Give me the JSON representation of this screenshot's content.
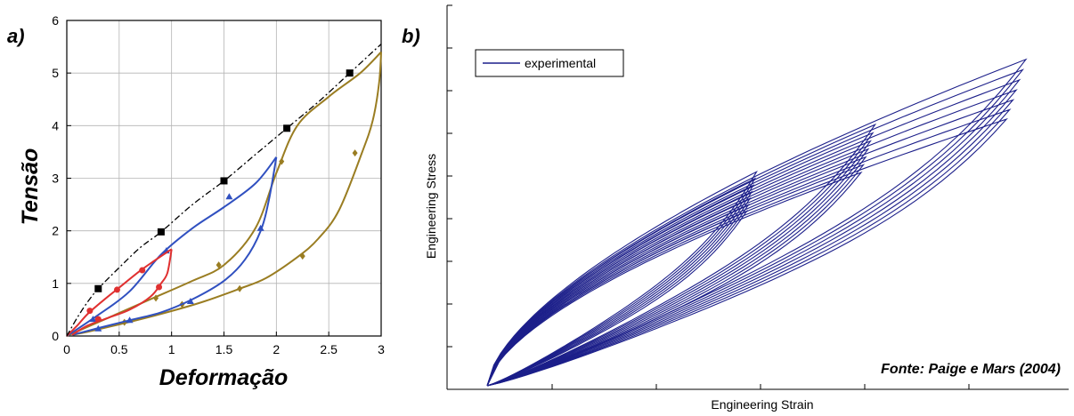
{
  "chart_data": [
    {
      "panel_label": "a)",
      "type": "line",
      "xlabel": "Deformação",
      "ylabel": "Tensão",
      "xlim": [
        0,
        3
      ],
      "ylim": [
        0,
        6
      ],
      "x_ticks": [
        "0",
        "0.5",
        "1",
        "1.5",
        "2",
        "2.5",
        "3"
      ],
      "y_ticks": [
        "0",
        "1",
        "2",
        "3",
        "4",
        "5",
        "6"
      ],
      "grid": true,
      "colors": {
        "envelope": "#000000",
        "cycle_1": "#e03030",
        "cycle_2": "#3050c0",
        "cycle_3": "#9a7d22"
      },
      "series": [
        {
          "key": "envelope",
          "style": "dash-dot",
          "marker": "square",
          "points": [
            [
              0,
              0
            ],
            [
              0.1,
              0.35
            ],
            [
              0.2,
              0.65
            ],
            [
              0.3,
              0.9
            ],
            [
              0.5,
              1.3
            ],
            [
              0.7,
              1.68
            ],
            [
              0.9,
              1.98
            ],
            [
              1.2,
              2.5
            ],
            [
              1.5,
              2.95
            ],
            [
              1.8,
              3.45
            ],
            [
              2.1,
              3.95
            ],
            [
              2.4,
              4.45
            ],
            [
              2.7,
              5.0
            ],
            [
              3.0,
              5.55
            ]
          ],
          "markers": [
            [
              0.3,
              0.9
            ],
            [
              0.9,
              1.98
            ],
            [
              1.5,
              2.95
            ],
            [
              2.1,
              3.95
            ],
            [
              2.7,
              5.0
            ]
          ]
        },
        {
          "key": "cycle_1",
          "marker": "circle",
          "loading": [
            [
              0,
              0
            ],
            [
              0.1,
              0.2
            ],
            [
              0.2,
              0.42
            ],
            [
              0.35,
              0.68
            ],
            [
              0.5,
              0.92
            ],
            [
              0.7,
              1.24
            ],
            [
              0.85,
              1.45
            ],
            [
              1.0,
              1.65
            ]
          ],
          "unloading": [
            [
              1.0,
              1.65
            ],
            [
              0.96,
              1.2
            ],
            [
              0.9,
              1.0
            ],
            [
              0.8,
              0.75
            ],
            [
              0.6,
              0.5
            ],
            [
              0.4,
              0.35
            ],
            [
              0.2,
              0.2
            ],
            [
              0.05,
              0.02
            ]
          ],
          "markers": [
            [
              0.22,
              0.48
            ],
            [
              0.48,
              0.88
            ],
            [
              0.72,
              1.25
            ],
            [
              0.88,
              0.93
            ],
            [
              0.3,
              0.32
            ]
          ]
        },
        {
          "key": "cycle_2",
          "marker": "triangle",
          "loading": [
            [
              0,
              0
            ],
            [
              0.3,
              0.4
            ],
            [
              0.6,
              0.85
            ],
            [
              0.9,
              1.55
            ],
            [
              1.2,
              2.05
            ],
            [
              1.5,
              2.45
            ],
            [
              1.8,
              2.9
            ],
            [
              2.0,
              3.4
            ]
          ],
          "unloading": [
            [
              2.0,
              3.4
            ],
            [
              1.93,
              2.6
            ],
            [
              1.85,
              2.0
            ],
            [
              1.7,
              1.45
            ],
            [
              1.5,
              1.05
            ],
            [
              1.2,
              0.7
            ],
            [
              0.9,
              0.45
            ],
            [
              0.6,
              0.3
            ],
            [
              0.3,
              0.15
            ],
            [
              0.05,
              0.02
            ]
          ],
          "markers": [
            [
              0.25,
              0.32
            ],
            [
              0.95,
              1.62
            ],
            [
              1.55,
              2.65
            ],
            [
              1.85,
              2.05
            ],
            [
              1.18,
              0.66
            ],
            [
              0.3,
              0.14
            ],
            [
              0.6,
              0.3
            ]
          ]
        },
        {
          "key": "cycle_3",
          "marker": "diamond",
          "loading": [
            [
              0,
              0
            ],
            [
              0.4,
              0.35
            ],
            [
              0.8,
              0.7
            ],
            [
              1.2,
              1.05
            ],
            [
              1.5,
              1.35
            ],
            [
              1.8,
              2.05
            ],
            [
              2.0,
              3.1
            ],
            [
              2.2,
              4.0
            ],
            [
              2.5,
              4.55
            ],
            [
              2.8,
              5.0
            ],
            [
              3.0,
              5.4
            ]
          ],
          "unloading": [
            [
              3.0,
              5.4
            ],
            [
              2.98,
              4.8
            ],
            [
              2.92,
              4.1
            ],
            [
              2.82,
              3.5
            ],
            [
              2.6,
              2.4
            ],
            [
              2.4,
              1.85
            ],
            [
              2.2,
              1.5
            ],
            [
              1.9,
              1.1
            ],
            [
              1.65,
              0.9
            ],
            [
              1.3,
              0.65
            ],
            [
              0.9,
              0.42
            ],
            [
              0.5,
              0.22
            ],
            [
              0.2,
              0.08
            ],
            [
              0.05,
              0.02
            ]
          ],
          "markers": [
            [
              0.85,
              0.72
            ],
            [
              1.45,
              1.35
            ],
            [
              2.05,
              3.32
            ],
            [
              2.75,
              3.48
            ],
            [
              2.25,
              1.52
            ],
            [
              1.65,
              0.9
            ],
            [
              1.1,
              0.6
            ],
            [
              0.55,
              0.26
            ]
          ]
        }
      ]
    },
    {
      "panel_label": "b)",
      "type": "line",
      "xlabel": "Engineering Strain",
      "ylabel": "Engineering Stress",
      "legend_position": "top-left",
      "note": "Fonte: Paige e Mars (2004)",
      "grid": false,
      "colors": {
        "experimental": "#1c1f8a"
      },
      "series": [
        {
          "name": "experimental",
          "description_level": "repeated hysteresis cycles at three increasing strain amplitudes",
          "cycles": [
            {
              "max_x": 0.5,
              "max_y": 0.59,
              "repeats": 7
            },
            {
              "max_x": 0.72,
              "max_y": 0.72,
              "repeats": 7
            },
            {
              "max_x": 1.0,
              "max_y": 0.9,
              "repeats": 7
            }
          ]
        }
      ]
    }
  ]
}
